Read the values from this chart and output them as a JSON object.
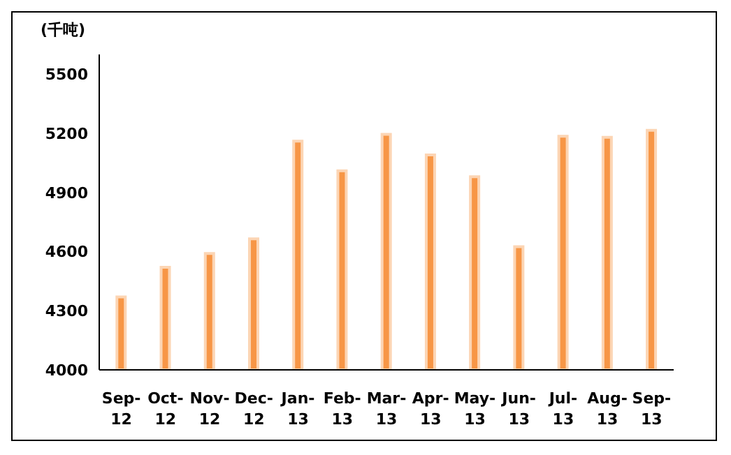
{
  "chart_data": {
    "type": "bar",
    "ylabel": "(千吨)",
    "categories": [
      "Sep-12",
      "Oct-12",
      "Nov-12",
      "Dec-12",
      "Jan-13",
      "Feb-13",
      "Mar-13",
      "Apr-13",
      "May-13",
      "Jun-13",
      "Jul-13",
      "Aug-13",
      "Sep-13"
    ],
    "values": [
      4370,
      4520,
      4590,
      4665,
      5160,
      5010,
      5195,
      5090,
      4980,
      4625,
      5185,
      5180,
      5215
    ],
    "color": "#f79646",
    "ylim": [
      4000,
      5600
    ],
    "yticks": [
      4000,
      4300,
      4600,
      4900,
      5200,
      5500
    ],
    "grid": false,
    "legend": false
  }
}
